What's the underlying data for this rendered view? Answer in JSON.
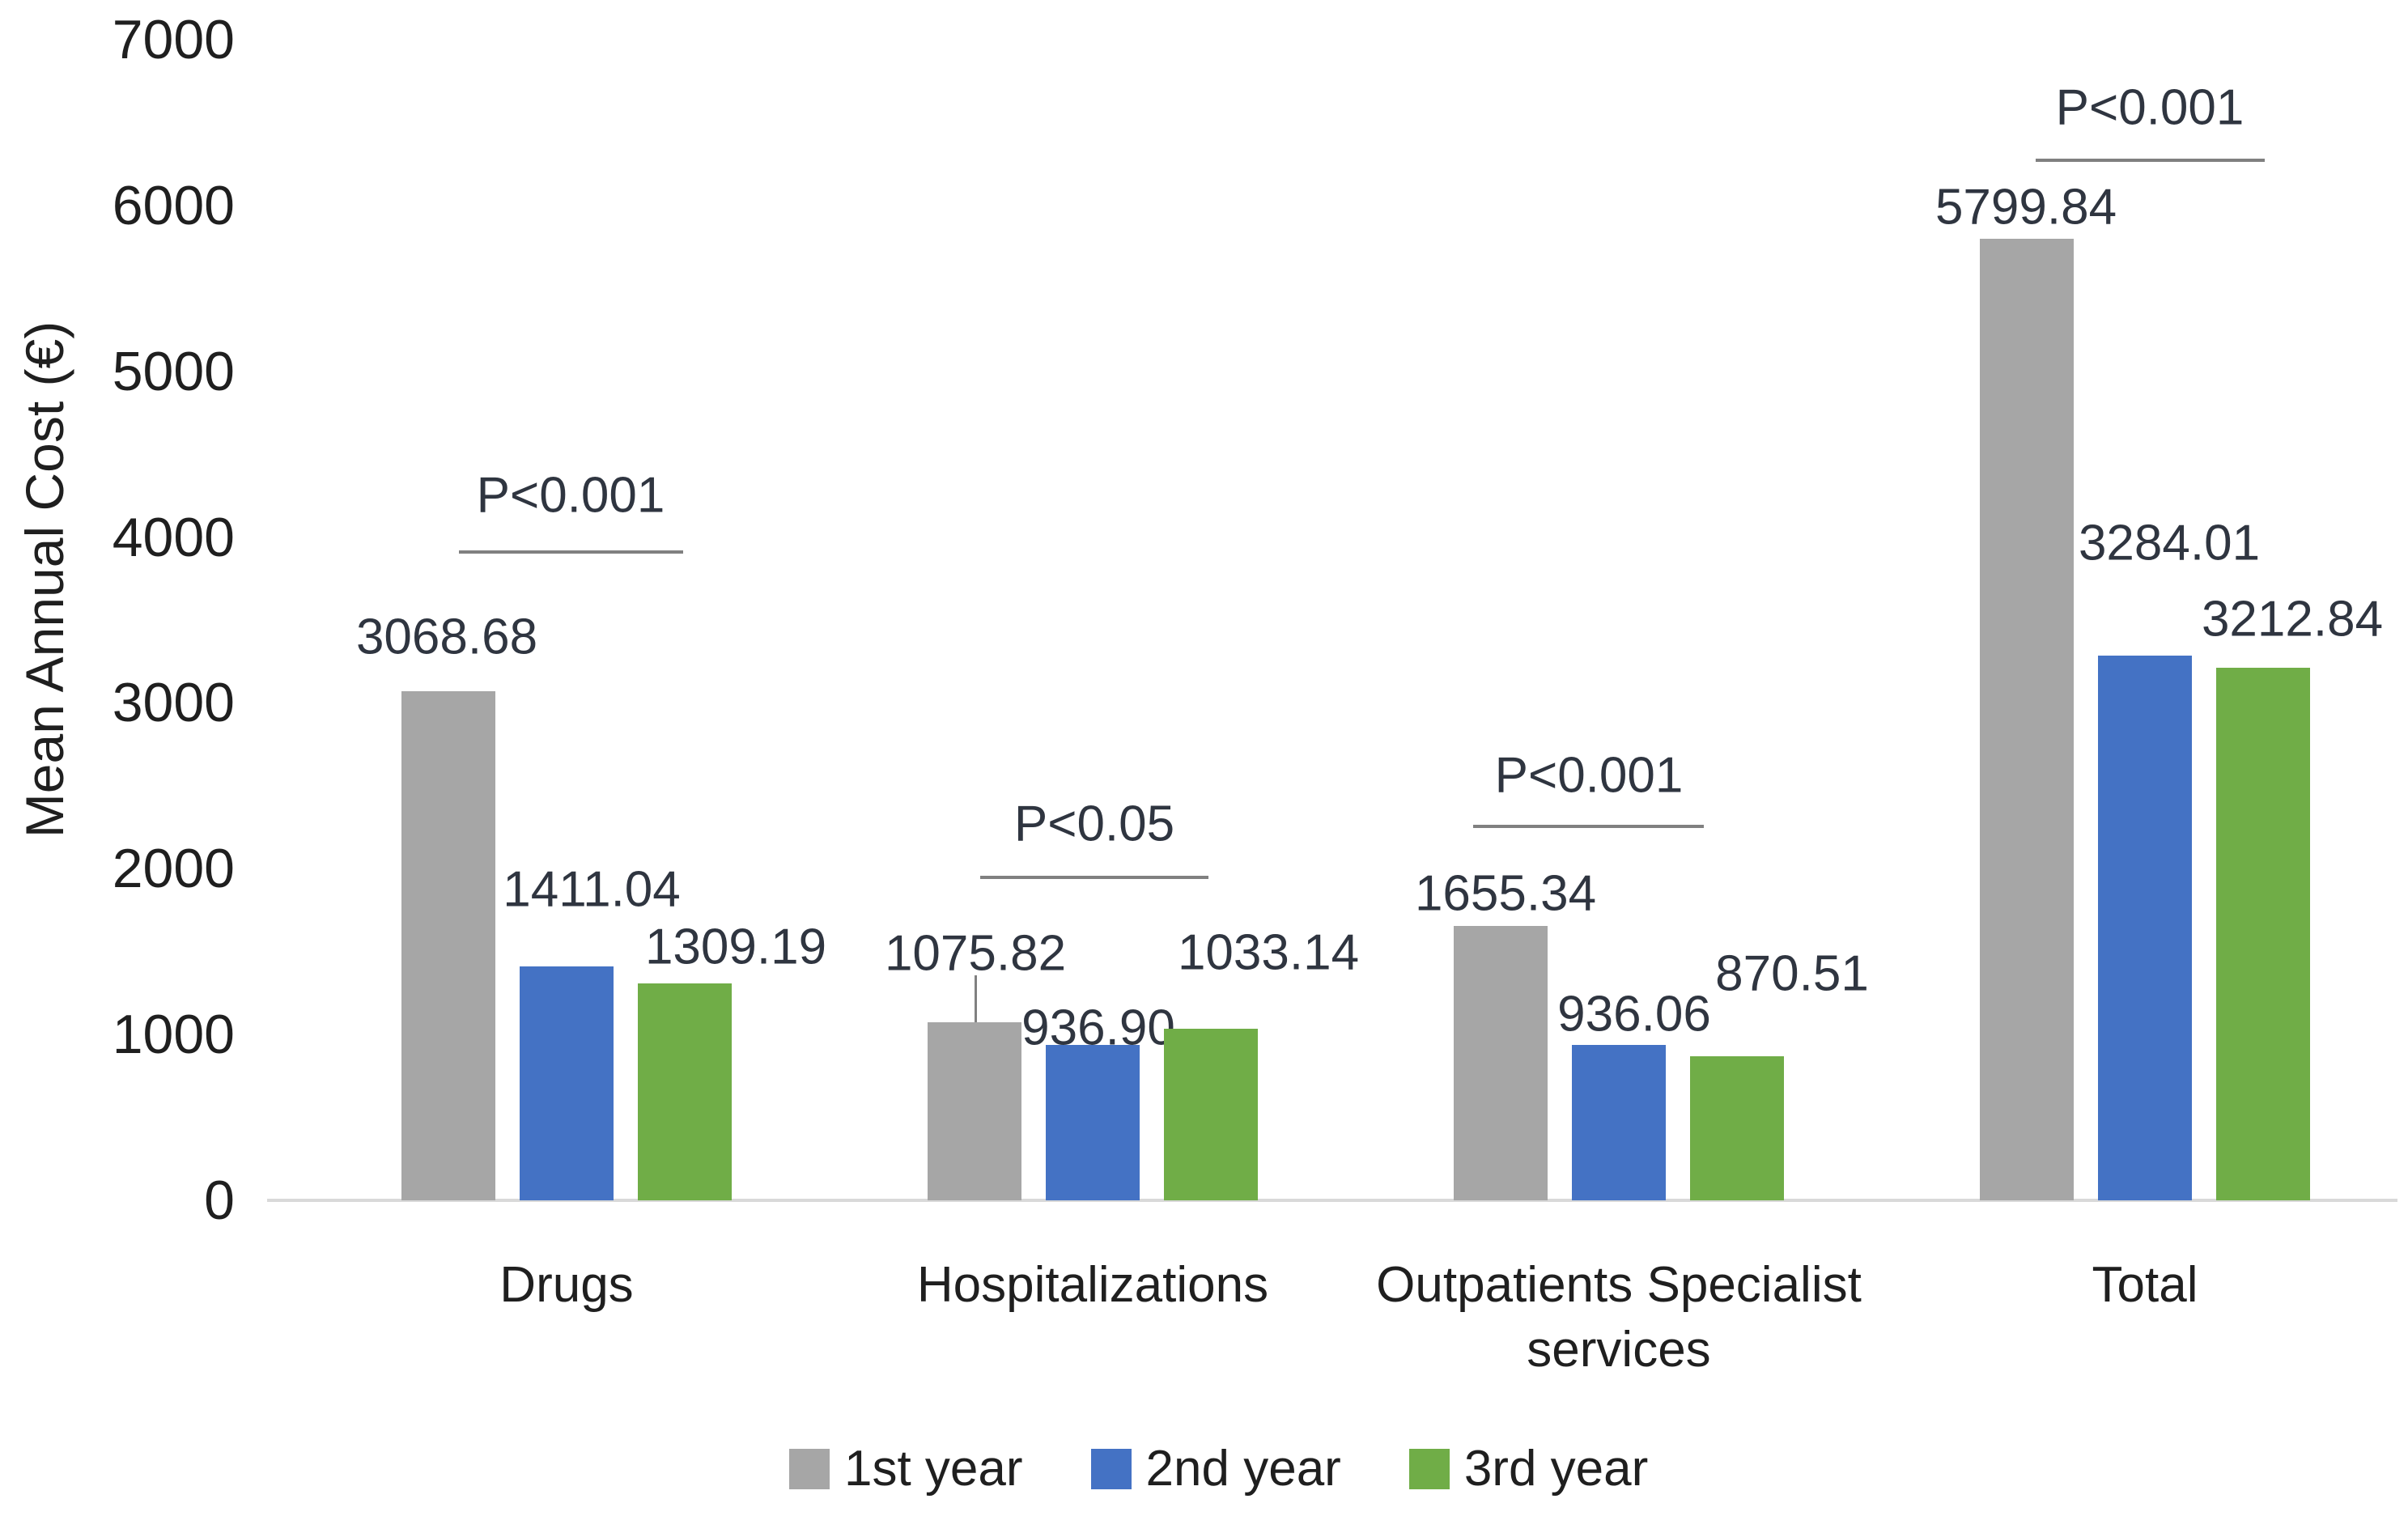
{
  "chart_data": {
    "type": "bar",
    "title": "",
    "ylabel": "Mean Annual Cost (€)",
    "xlabel": "",
    "ylim": [
      0,
      7000
    ],
    "ytick_interval": 1000,
    "grid": false,
    "legend_position": "bottom",
    "categories": [
      "Drugs",
      "Hospitalizations",
      "Outpatients Specialist services",
      "Total"
    ],
    "series": [
      {
        "name": "1st year",
        "color": "#a6a6a6",
        "values": [
          3068.68,
          1075.82,
          1655.34,
          5799.84
        ],
        "labels": [
          "3068.68",
          "1075.82",
          "1655.34",
          "5799.84"
        ]
      },
      {
        "name": "2nd year",
        "color": "#4472c4",
        "values": [
          1411.04,
          936.9,
          936.06,
          3284.01
        ],
        "labels": [
          "1411.04",
          "936.90",
          "936.06",
          "3284.01"
        ]
      },
      {
        "name": "3rd year",
        "color": "#70ad47",
        "values": [
          1309.19,
          1033.14,
          870.51,
          3212.84
        ],
        "labels": [
          "1309.19",
          "1033.14",
          "870.51",
          "3212.84"
        ]
      }
    ],
    "annotations": [
      {
        "category": "Drugs",
        "text": "P<0.001"
      },
      {
        "category": "Hospitalizations",
        "text": "P<0.05"
      },
      {
        "category": "Outpatients Specialist services",
        "text": "P<0.001"
      },
      {
        "category": "Total",
        "text": "P<0.001"
      }
    ],
    "error_bars": [
      {
        "category": "Hospitalizations",
        "series": "1st year",
        "upper_value": 1357
      }
    ]
  }
}
